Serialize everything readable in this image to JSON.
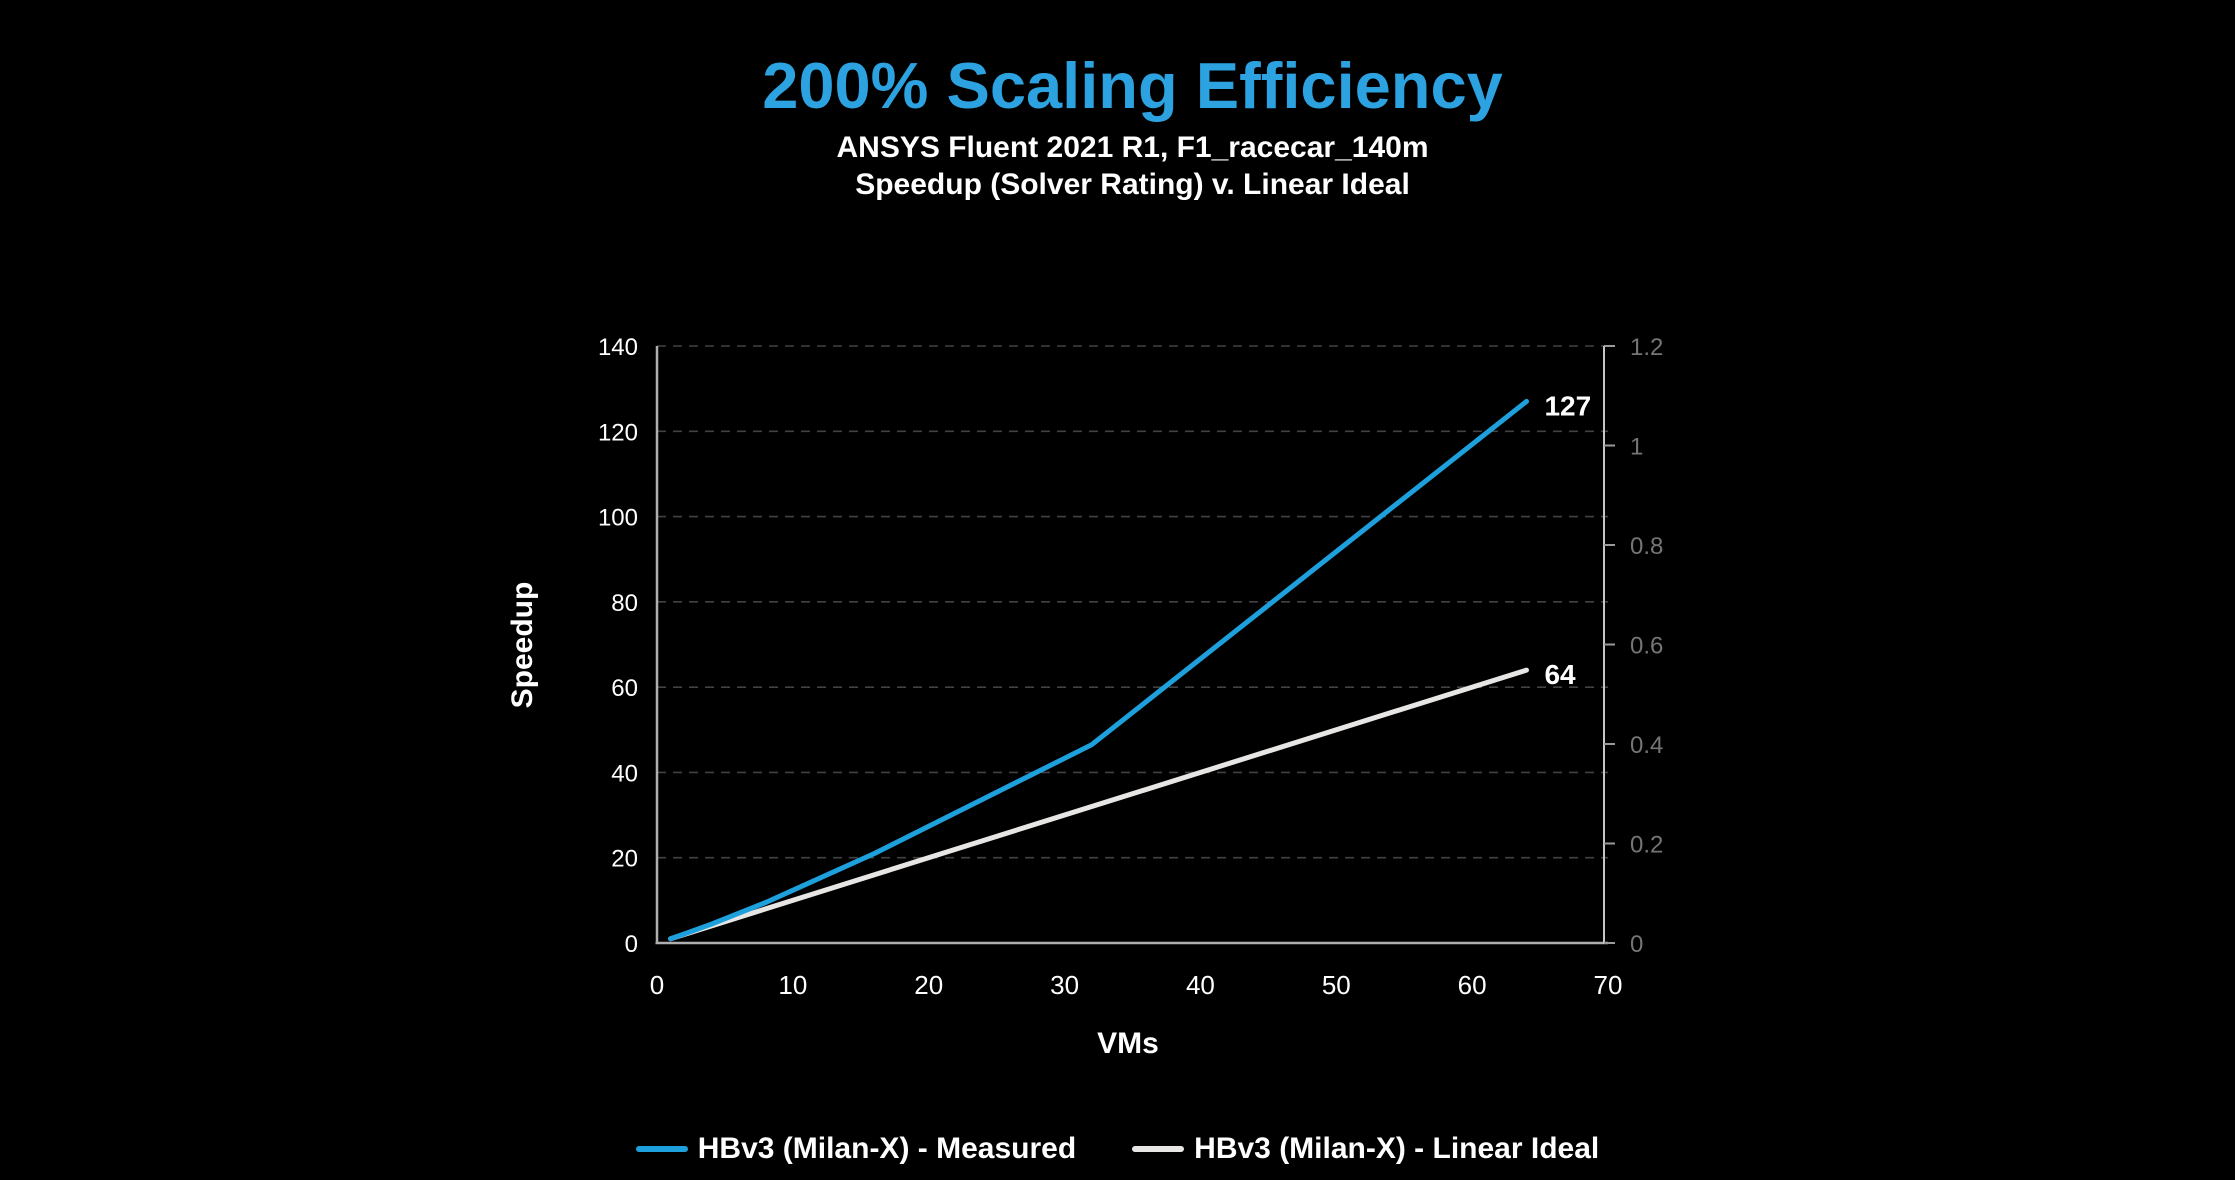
{
  "header": {
    "title": "200% Scaling Efficiency",
    "subtitle1": "ANSYS Fluent 2021 R1, F1_racecar_140m",
    "subtitle2": "Speedup (Solver Rating) v. Linear Ideal"
  },
  "colors": {
    "background": "#000000",
    "title_blue": "#2CA2E0",
    "measured_blue": "#1EA0DC",
    "ideal_white": "#E8E6E4",
    "axis_line": "#AFAFAF",
    "right_axis_line": "#C6C6C6",
    "right_axis_tick": "#9A9A9A",
    "gridline": "#424242",
    "tick_label_white": "#FFFFFF",
    "right_tick_label": "#757575",
    "end_label_white": "#FFFFFF"
  },
  "chart_data": {
    "type": "line",
    "title": "200% Scaling Efficiency",
    "xlabel": "VMs",
    "ylabel": "Speedup",
    "xlim": [
      0,
      70
    ],
    "ylim": [
      0,
      140
    ],
    "y2lim": [
      0,
      1.2
    ],
    "x_ticks": [
      0,
      10,
      20,
      30,
      40,
      50,
      60,
      70
    ],
    "y_ticks_left": [
      0,
      20,
      40,
      60,
      80,
      100,
      120,
      140
    ],
    "y_ticks_right": [
      0,
      0.2,
      0.4,
      0.6,
      0.8,
      1,
      1.2
    ],
    "grid": "horizontal-dashed",
    "legend_position": "bottom",
    "series": [
      {
        "name": "HBv3 (Milan-X) - Measured",
        "color": "#1EA0DC",
        "x": [
          1,
          2,
          4,
          8,
          16,
          32,
          64
        ],
        "y": [
          1,
          2.1,
          4.4,
          9.5,
          21,
          46.5,
          127
        ],
        "end_label": "127"
      },
      {
        "name": "HBv3 (Milan-X) - Linear Ideal",
        "color": "#E8E6E4",
        "x": [
          1,
          64
        ],
        "y": [
          1,
          64
        ],
        "end_label": "64"
      }
    ]
  },
  "legend": {
    "items": [
      {
        "label": "HBv3 (Milan-X) - Measured",
        "color": "#1EA0DC"
      },
      {
        "label": "HBv3 (Milan-X) - Linear Ideal",
        "color": "#E8E6E4"
      }
    ]
  }
}
